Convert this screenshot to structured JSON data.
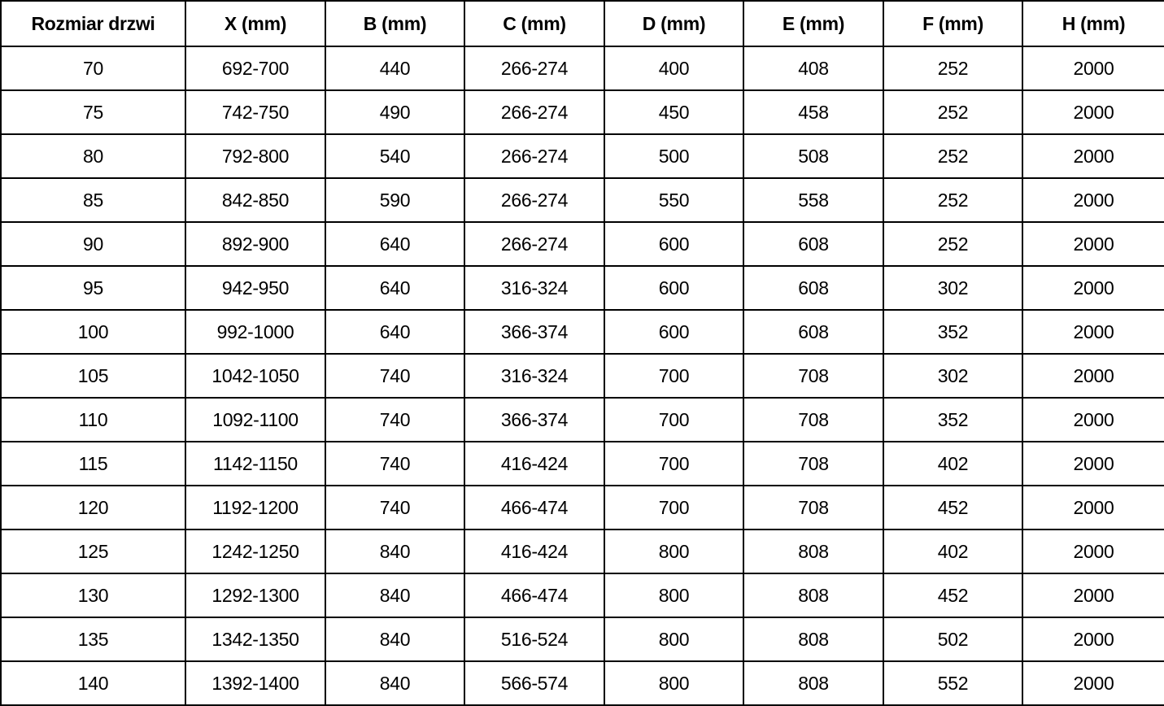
{
  "table": {
    "columns": [
      "Rozmiar drzwi",
      "X (mm)",
      "B (mm)",
      "C (mm)",
      "D (mm)",
      "E (mm)",
      "F (mm)",
      "H (mm)"
    ],
    "rows": [
      [
        "70",
        "692-700",
        "440",
        "266-274",
        "400",
        "408",
        "252",
        "2000"
      ],
      [
        "75",
        "742-750",
        "490",
        "266-274",
        "450",
        "458",
        "252",
        "2000"
      ],
      [
        "80",
        "792-800",
        "540",
        "266-274",
        "500",
        "508",
        "252",
        "2000"
      ],
      [
        "85",
        "842-850",
        "590",
        "266-274",
        "550",
        "558",
        "252",
        "2000"
      ],
      [
        "90",
        "892-900",
        "640",
        "266-274",
        "600",
        "608",
        "252",
        "2000"
      ],
      [
        "95",
        "942-950",
        "640",
        "316-324",
        "600",
        "608",
        "302",
        "2000"
      ],
      [
        "100",
        "992-1000",
        "640",
        "366-374",
        "600",
        "608",
        "352",
        "2000"
      ],
      [
        "105",
        "1042-1050",
        "740",
        "316-324",
        "700",
        "708",
        "302",
        "2000"
      ],
      [
        "110",
        "1092-1100",
        "740",
        "366-374",
        "700",
        "708",
        "352",
        "2000"
      ],
      [
        "115",
        "1142-1150",
        "740",
        "416-424",
        "700",
        "708",
        "402",
        "2000"
      ],
      [
        "120",
        "1192-1200",
        "740",
        "466-474",
        "700",
        "708",
        "452",
        "2000"
      ],
      [
        "125",
        "1242-1250",
        "840",
        "416-424",
        "800",
        "808",
        "402",
        "2000"
      ],
      [
        "130",
        "1292-1300",
        "840",
        "466-474",
        "800",
        "808",
        "452",
        "2000"
      ],
      [
        "135",
        "1342-1350",
        "840",
        "516-524",
        "800",
        "808",
        "502",
        "2000"
      ],
      [
        "140",
        "1392-1400",
        "840",
        "566-574",
        "800",
        "808",
        "552",
        "2000"
      ]
    ]
  },
  "colors": {
    "text": "#000000",
    "border": "#000000",
    "background": "#ffffff"
  }
}
